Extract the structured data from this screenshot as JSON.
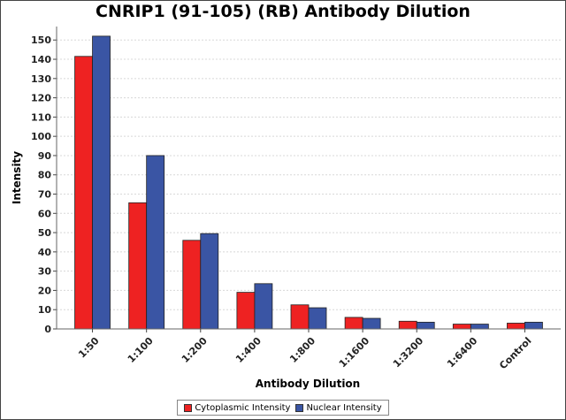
{
  "chart_data": {
    "type": "bar",
    "title": "CNRIP1 (91-105) (RB) Antibody Dilution",
    "xlabel": "Antibody Dilution",
    "ylabel": "Intensity",
    "categories": [
      "1:50",
      "1:100",
      "1:200",
      "1:400",
      "1:800",
      "1:1600",
      "1:3200",
      "1:6400",
      "Control"
    ],
    "series": [
      {
        "name": "Cytoplasmic Intensity",
        "color": "#ee2222",
        "values": [
          141.5,
          65.5,
          46,
          19,
          12.5,
          6,
          4,
          2.5,
          3
        ]
      },
      {
        "name": "Nuclear Intensity",
        "color": "#3a55a4",
        "values": [
          152,
          90,
          49.5,
          23.5,
          11,
          5.5,
          3.5,
          2.5,
          3.5
        ]
      }
    ],
    "ylim": [
      0,
      157
    ],
    "yticks": [
      0,
      10,
      20,
      30,
      40,
      50,
      60,
      70,
      80,
      90,
      100,
      110,
      120,
      130,
      140,
      150
    ],
    "grid": true,
    "legend": "bottom"
  }
}
